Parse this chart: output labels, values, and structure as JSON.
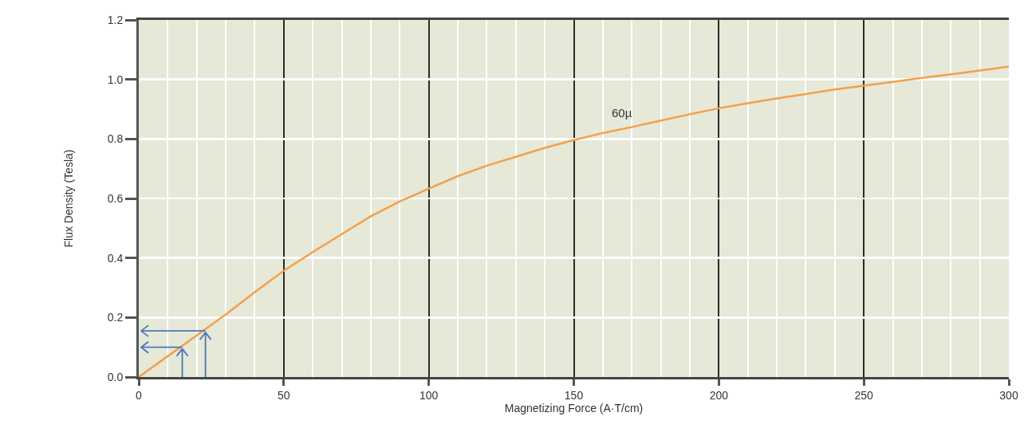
{
  "chart_data": {
    "type": "line",
    "xlabel": "Magnetizing Force (A·T/cm)",
    "ylabel": "Flux Density (Tesla)",
    "x": [
      0,
      10,
      20,
      30,
      40,
      50,
      60,
      70,
      80,
      90,
      100,
      110,
      120,
      130,
      140,
      150,
      160,
      170,
      180,
      190,
      200,
      210,
      220,
      230,
      240,
      250,
      260,
      270,
      280,
      290,
      300
    ],
    "series": [
      {
        "name": "60µ",
        "color": "#f4a04a",
        "values": [
          0,
          0.07,
          0.14,
          0.21,
          0.285,
          0.357,
          0.42,
          0.48,
          0.54,
          0.59,
          0.633,
          0.675,
          0.71,
          0.74,
          0.77,
          0.796,
          0.82,
          0.84,
          0.862,
          0.883,
          0.903,
          0.92,
          0.936,
          0.951,
          0.966,
          0.979,
          0.992,
          1.005,
          1.017,
          1.03,
          1.043
        ]
      }
    ],
    "xlim": [
      0,
      300
    ],
    "xticks": [
      0,
      50,
      100,
      150,
      200,
      250,
      300
    ],
    "ylim": [
      0,
      1.2
    ],
    "yticks": [
      {
        "value": 0,
        "label": "0.0"
      },
      {
        "value": 0.2,
        "label": "0.2"
      },
      {
        "value": 0.4,
        "label": "0.4"
      },
      {
        "value": 0.6,
        "label": "0.6"
      },
      {
        "value": 0.8,
        "label": "0.8"
      },
      {
        "value": 1,
        "label": "1.0"
      },
      {
        "value": 1.2,
        "label": "1.2"
      }
    ],
    "grid": true,
    "legend": false,
    "marker": "none",
    "line_style": "solid"
  }
}
